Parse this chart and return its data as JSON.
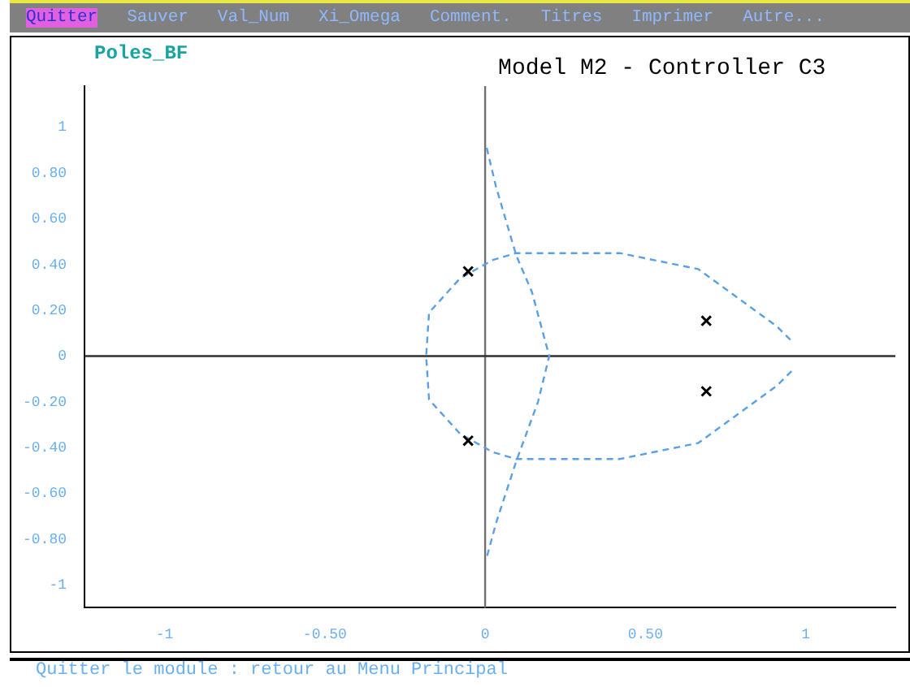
{
  "chart_data": {
    "type": "scatter",
    "title": "Model M2 - Controller C3",
    "ylabel": "Poles_BF",
    "annotations": [
      "Quitter",
      "Sauver",
      "Val_Num",
      "Xi_Omega",
      "Comment.",
      "Titres",
      "Imprimer",
      "Autre...",
      "Quitter le module : retour au Menu Principal"
    ],
    "xlim": [
      -1.25,
      1.28
    ],
    "ylim": [
      -1.1,
      1.18
    ],
    "xticks": [
      -1,
      {
        "value": -0.5,
        "label": "-0.50"
      },
      0,
      {
        "value": 0.5,
        "label": "0.50"
      },
      1
    ],
    "yticks": [
      -1,
      {
        "value": -0.8,
        "label": "-0.80"
      },
      {
        "value": -0.6,
        "label": "-0.60"
      },
      {
        "value": -0.4,
        "label": "-0.40"
      },
      {
        "value": -0.2,
        "label": "-0.20"
      },
      0,
      {
        "value": 0.2,
        "label": "0.20"
      },
      {
        "value": 0.4,
        "label": "0.40"
      },
      {
        "value": 0.6,
        "label": "0.60"
      },
      {
        "value": 0.8,
        "label": "0.80"
      },
      1
    ],
    "grid": false,
    "legend": false,
    "ref_lines": [
      {
        "axis": "x",
        "value": 0,
        "color": "#707070"
      },
      {
        "axis": "y",
        "value": 0,
        "color": "#303030"
      }
    ],
    "series": [
      {
        "type": "scatter",
        "color": "#000000",
        "marker": "cross",
        "x": [
          -0.053,
          -0.053,
          0.69,
          0.69
        ],
        "values": [
          0.37,
          -0.37,
          0.154,
          -0.154
        ]
      },
      {
        "type": "line",
        "color": "#5aa0e6",
        "line_style": "dashed",
        "marker": "none",
        "x": [
          0.005,
          0.034,
          0.097,
          0.146,
          0.2,
          0.165,
          0.097,
          0.034,
          0.005
        ],
        "values": [
          0.91,
          0.74,
          0.44,
          0.28,
          0.0,
          -0.2,
          -0.46,
          -0.73,
          -0.88
        ]
      },
      {
        "type": "line",
        "color": "#5aa0e6",
        "line_style": "dashed",
        "marker": "none",
        "x": [
          0.956,
          0.91,
          0.665,
          0.42,
          0.097,
          0.024,
          -0.078,
          -0.175,
          -0.184,
          -0.175,
          -0.078,
          0.024,
          0.097,
          0.42,
          0.665,
          0.91,
          0.956
        ],
        "values": [
          -0.066,
          -0.13,
          -0.38,
          -0.45,
          -0.45,
          -0.42,
          -0.34,
          -0.19,
          0,
          0.19,
          0.34,
          0.42,
          0.45,
          0.45,
          0.38,
          0.13,
          0.066
        ]
      }
    ]
  }
}
